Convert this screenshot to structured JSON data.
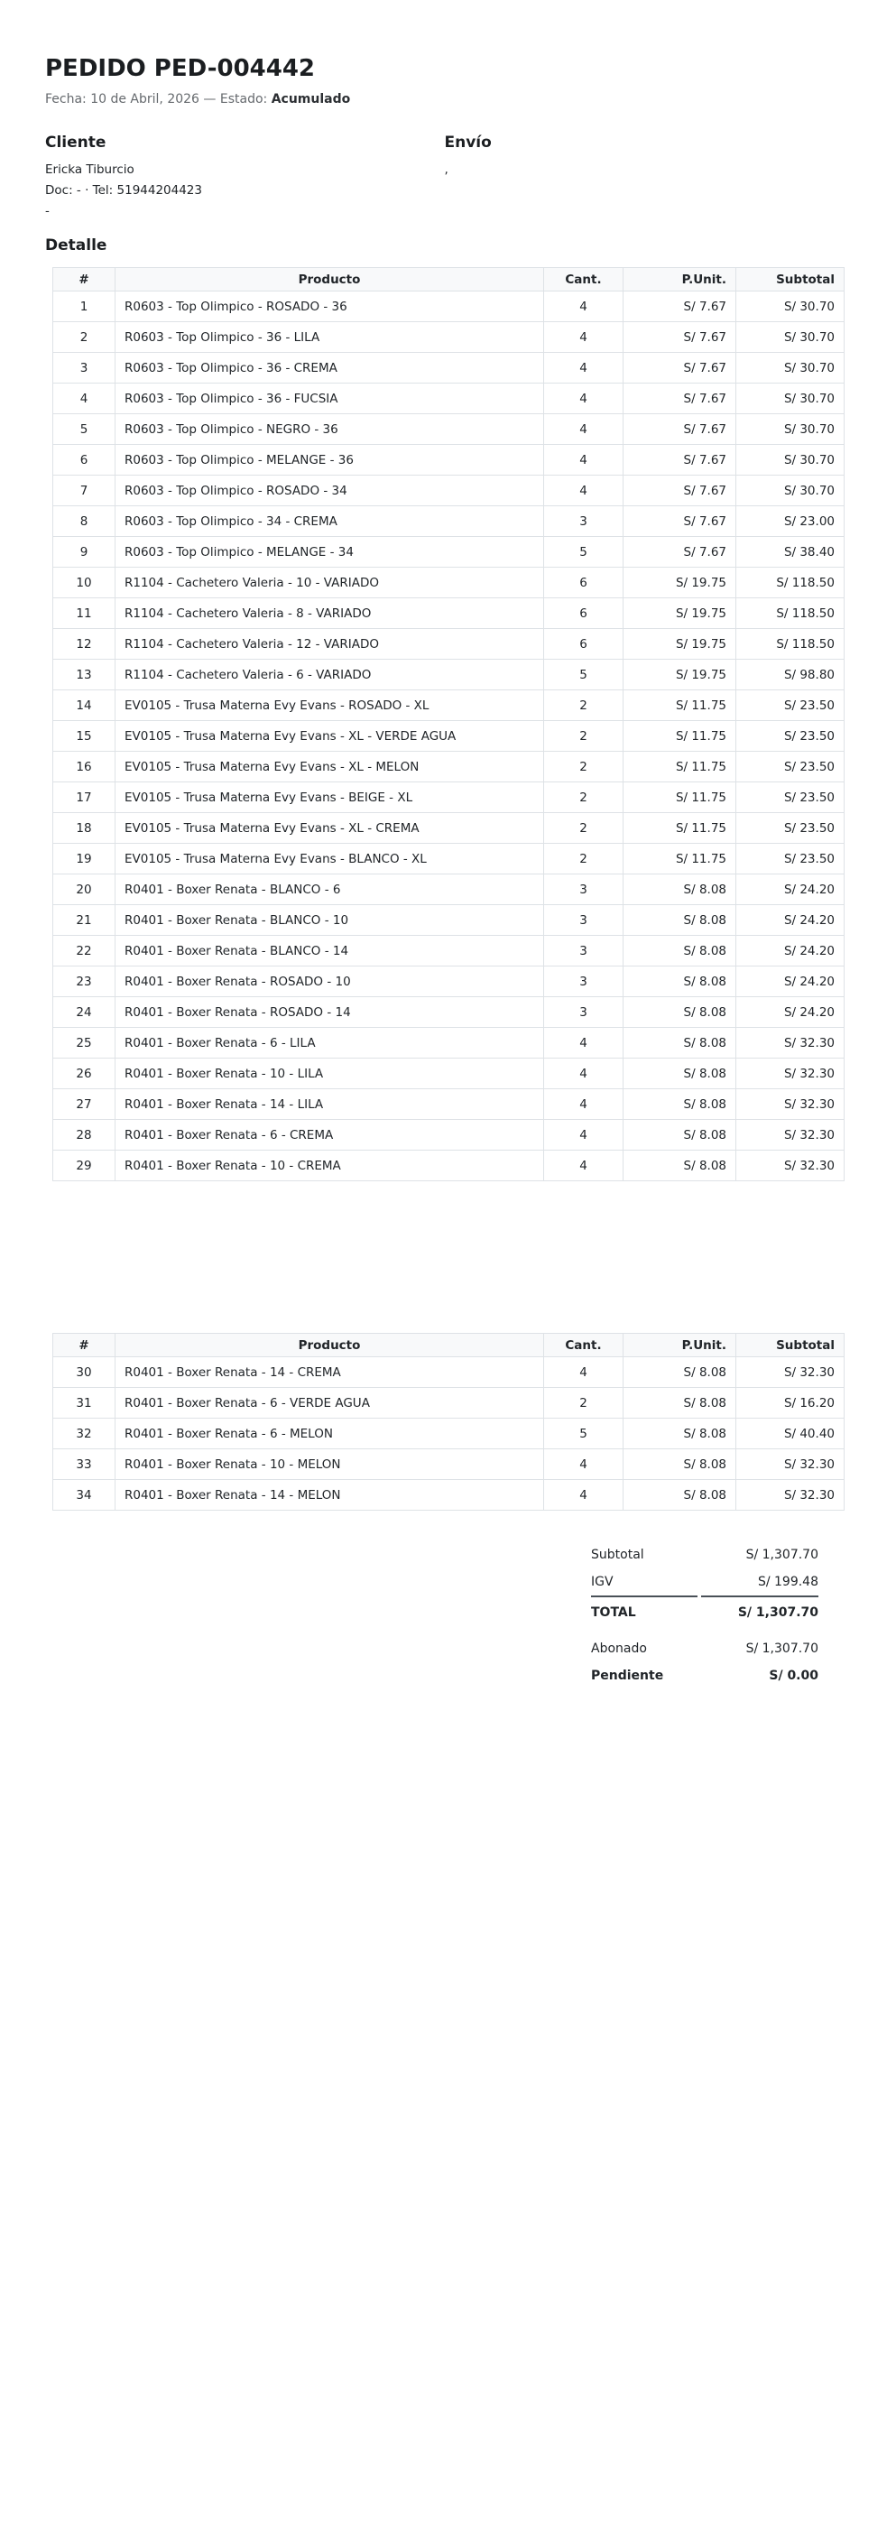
{
  "header": {
    "title": "PEDIDO PED-004442",
    "meta_prefix": "Fecha: 10 de Abril, 2026 — Estado:",
    "estado": "Acumulado"
  },
  "cliente": {
    "heading": "Cliente",
    "name": "Ericka Tiburcio",
    "doc_line": "Doc: - · Tel: 51944204423",
    "extra_line": "-"
  },
  "envio": {
    "heading": "Envío",
    "line1": ","
  },
  "detalle": {
    "heading": "Detalle",
    "columns": [
      "#",
      "Producto",
      "Cant.",
      "P.Unit.",
      "Subtotal"
    ],
    "rows_page1": [
      [
        "1",
        "R0603 - Top Olimpico - ROSADO - 36",
        "4",
        "S/ 7.67",
        "S/ 30.70"
      ],
      [
        "2",
        "R0603 - Top Olimpico - 36 - LILA",
        "4",
        "S/ 7.67",
        "S/ 30.70"
      ],
      [
        "3",
        "R0603 - Top Olimpico - 36 - CREMA",
        "4",
        "S/ 7.67",
        "S/ 30.70"
      ],
      [
        "4",
        "R0603 - Top Olimpico - 36 - FUCSIA",
        "4",
        "S/ 7.67",
        "S/ 30.70"
      ],
      [
        "5",
        "R0603 - Top Olimpico - NEGRO - 36",
        "4",
        "S/ 7.67",
        "S/ 30.70"
      ],
      [
        "6",
        "R0603 - Top Olimpico - MELANGE - 36",
        "4",
        "S/ 7.67",
        "S/ 30.70"
      ],
      [
        "7",
        "R0603 - Top Olimpico - ROSADO - 34",
        "4",
        "S/ 7.67",
        "S/ 30.70"
      ],
      [
        "8",
        "R0603 - Top Olimpico - 34 - CREMA",
        "3",
        "S/ 7.67",
        "S/ 23.00"
      ],
      [
        "9",
        "R0603 - Top Olimpico - MELANGE - 34",
        "5",
        "S/ 7.67",
        "S/ 38.40"
      ],
      [
        "10",
        "R1104 - Cachetero Valeria - 10 - VARIADO",
        "6",
        "S/ 19.75",
        "S/ 118.50"
      ],
      [
        "11",
        "R1104 - Cachetero Valeria - 8 - VARIADO",
        "6",
        "S/ 19.75",
        "S/ 118.50"
      ],
      [
        "12",
        "R1104 - Cachetero Valeria - 12 - VARIADO",
        "6",
        "S/ 19.75",
        "S/ 118.50"
      ],
      [
        "13",
        "R1104 - Cachetero Valeria - 6 - VARIADO",
        "5",
        "S/ 19.75",
        "S/ 98.80"
      ],
      [
        "14",
        "EV0105 - Trusa Materna Evy Evans - ROSADO - XL",
        "2",
        "S/ 11.75",
        "S/ 23.50"
      ],
      [
        "15",
        "EV0105 - Trusa Materna Evy Evans - XL - VERDE AGUA",
        "2",
        "S/ 11.75",
        "S/ 23.50"
      ],
      [
        "16",
        "EV0105 - Trusa Materna Evy Evans - XL - MELON",
        "2",
        "S/ 11.75",
        "S/ 23.50"
      ],
      [
        "17",
        "EV0105 - Trusa Materna Evy Evans - BEIGE - XL",
        "2",
        "S/ 11.75",
        "S/ 23.50"
      ],
      [
        "18",
        "EV0105 - Trusa Materna Evy Evans - XL - CREMA",
        "2",
        "S/ 11.75",
        "S/ 23.50"
      ],
      [
        "19",
        "EV0105 - Trusa Materna Evy Evans - BLANCO - XL",
        "2",
        "S/ 11.75",
        "S/ 23.50"
      ],
      [
        "20",
        "R0401 - Boxer Renata - BLANCO - 6",
        "3",
        "S/ 8.08",
        "S/ 24.20"
      ],
      [
        "21",
        "R0401 - Boxer Renata - BLANCO - 10",
        "3",
        "S/ 8.08",
        "S/ 24.20"
      ],
      [
        "22",
        "R0401 - Boxer Renata - BLANCO - 14",
        "3",
        "S/ 8.08",
        "S/ 24.20"
      ],
      [
        "23",
        "R0401 - Boxer Renata - ROSADO - 10",
        "3",
        "S/ 8.08",
        "S/ 24.20"
      ],
      [
        "24",
        "R0401 - Boxer Renata - ROSADO - 14",
        "3",
        "S/ 8.08",
        "S/ 24.20"
      ],
      [
        "25",
        "R0401 - Boxer Renata - 6 - LILA",
        "4",
        "S/ 8.08",
        "S/ 32.30"
      ],
      [
        "26",
        "R0401 - Boxer Renata - 10 - LILA",
        "4",
        "S/ 8.08",
        "S/ 32.30"
      ],
      [
        "27",
        "R0401 - Boxer Renata - 14 - LILA",
        "4",
        "S/ 8.08",
        "S/ 32.30"
      ],
      [
        "28",
        "R0401 - Boxer Renata - 6 - CREMA",
        "4",
        "S/ 8.08",
        "S/ 32.30"
      ],
      [
        "29",
        "R0401 - Boxer Renata - 10 - CREMA",
        "4",
        "S/ 8.08",
        "S/ 32.30"
      ]
    ],
    "rows_page2": [
      [
        "30",
        "R0401 - Boxer Renata - 14 - CREMA",
        "4",
        "S/ 8.08",
        "S/ 32.30"
      ],
      [
        "31",
        "R0401 - Boxer Renata - 6 - VERDE AGUA",
        "2",
        "S/ 8.08",
        "S/ 16.20"
      ],
      [
        "32",
        "R0401 - Boxer Renata - 6 - MELON",
        "5",
        "S/ 8.08",
        "S/ 40.40"
      ],
      [
        "33",
        "R0401 - Boxer Renata - 10 - MELON",
        "4",
        "S/ 8.08",
        "S/ 32.30"
      ],
      [
        "34",
        "R0401 - Boxer Renata - 14 - MELON",
        "4",
        "S/ 8.08",
        "S/ 32.30"
      ]
    ]
  },
  "totals": {
    "subtotal_label": "Subtotal",
    "subtotal_value": "S/ 1,307.70",
    "igv_label": "IGV",
    "igv_value": "S/ 199.48",
    "total_label": "TOTAL",
    "total_value": "S/ 1,307.70",
    "abonado_label": "Abonado",
    "abonado_value": "S/ 1,307.70",
    "pendiente_label": "Pendiente",
    "pendiente_value": "S/ 0.00"
  }
}
